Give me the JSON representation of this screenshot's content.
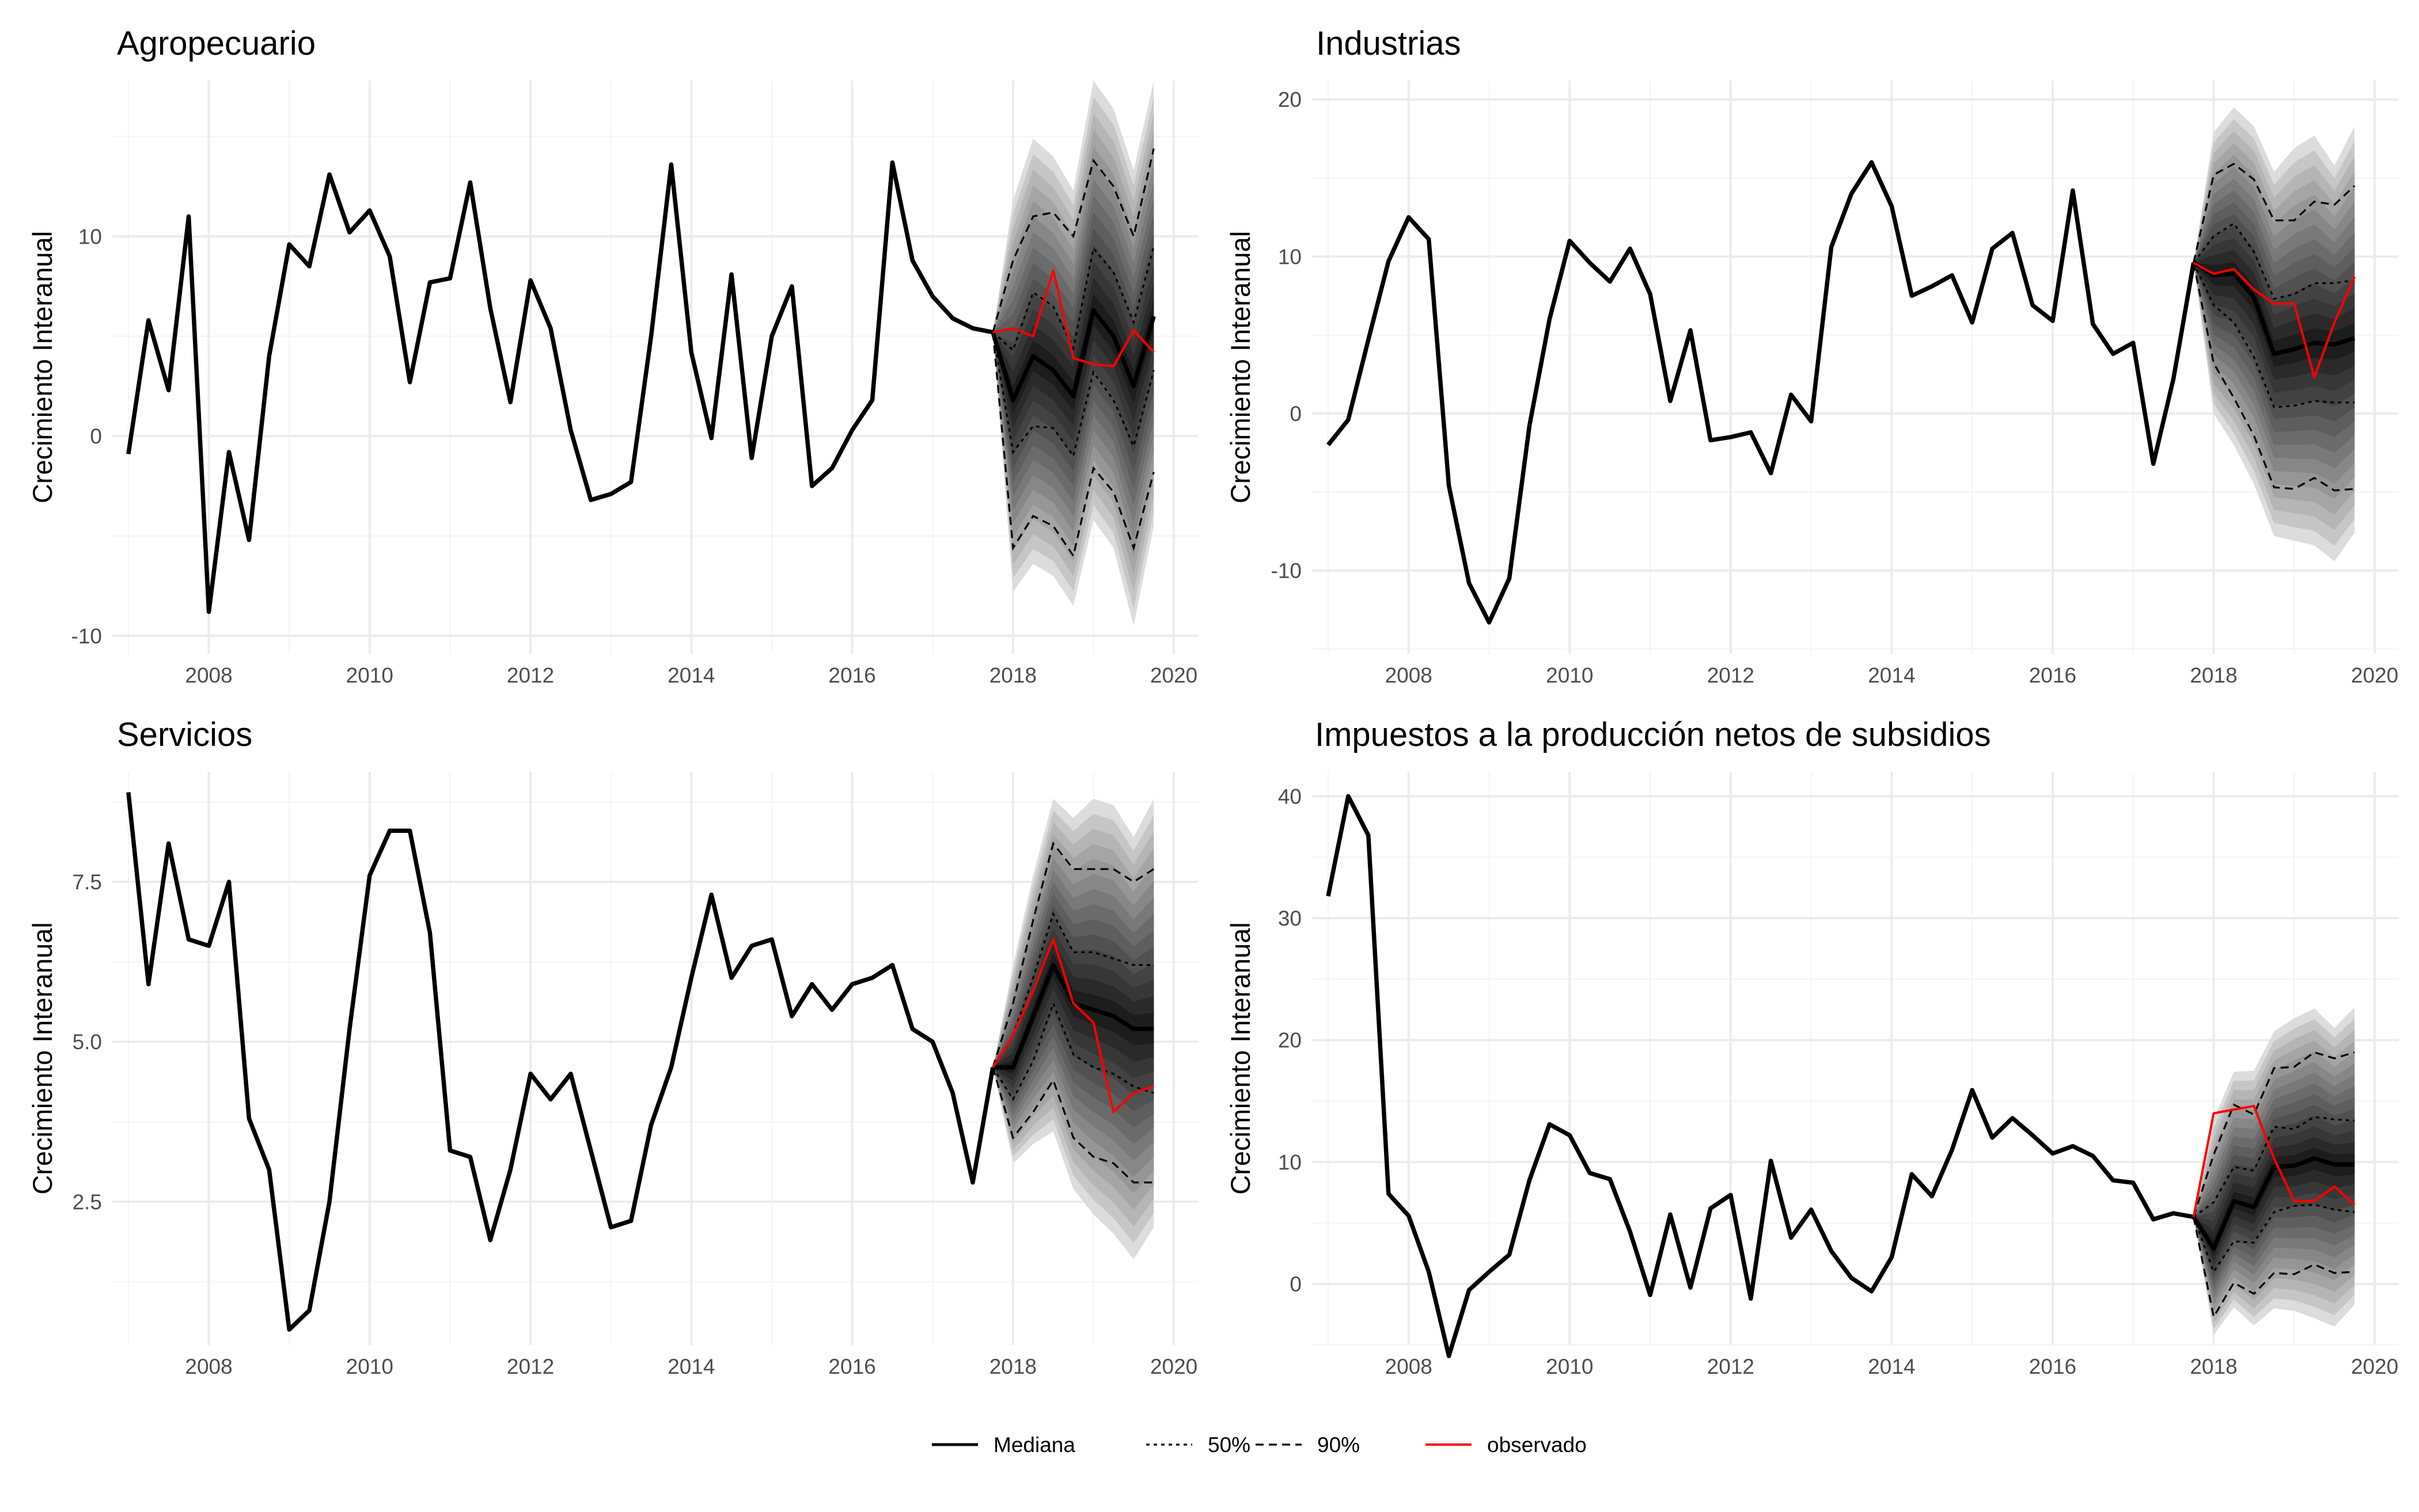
{
  "chart_data": [
    {
      "type": "line",
      "title": "Agropecuario",
      "xlabel": "",
      "ylabel": "Crecimiento Interanual",
      "xlim": [
        2006.8,
        2020.3
      ],
      "ylim": [
        -10.9,
        17.8
      ],
      "xticks": [
        2008,
        2010,
        2012,
        2014,
        2016,
        2018,
        2020
      ],
      "yticks": [
        -10,
        0,
        10
      ],
      "x_start": 2007.0,
      "x_step": 0.25,
      "history": [
        -0.9,
        5.8,
        2.3,
        11.0,
        -8.8,
        -0.8,
        -5.2,
        4.0,
        9.6,
        8.5,
        13.1,
        10.2,
        11.3,
        9.0,
        2.7,
        7.7,
        7.9,
        12.7,
        6.4,
        1.7,
        7.8,
        5.4,
        0.3,
        -3.2,
        -2.9,
        -2.3,
        5.0,
        13.6,
        4.2,
        -0.1,
        8.1,
        -1.1,
        5.0,
        7.5,
        -2.5,
        -1.6,
        0.3,
        1.8,
        13.7,
        8.8,
        7.0,
        5.9,
        5.4,
        5.2
      ],
      "fan_start": 2017.75,
      "median": [
        5.2,
        1.8,
        4.0,
        3.3,
        2.0,
        6.3,
        5.0,
        2.5,
        6.0
      ],
      "q25": [
        5.2,
        -0.8,
        0.5,
        0.4,
        -1.0,
        3.2,
        1.8,
        -0.5,
        3.3
      ],
      "q75": [
        5.2,
        4.3,
        7.2,
        6.5,
        4.4,
        9.4,
        8.2,
        5.7,
        9.5
      ],
      "q05": [
        5.2,
        -5.6,
        -4.0,
        -4.5,
        -6.0,
        -1.6,
        -2.8,
        -5.6,
        -1.8
      ],
      "q95": [
        5.2,
        8.8,
        11.0,
        11.2,
        10.0,
        13.8,
        12.5,
        10.0,
        14.4
      ],
      "outer_low": [
        5.2,
        -7.8,
        -6.4,
        -7.0,
        -8.5,
        -4.2,
        -5.6,
        -9.5,
        -4.5
      ],
      "outer_high": [
        5.2,
        11.8,
        14.9,
        14.0,
        12.3,
        17.8,
        16.4,
        13.3,
        17.8
      ],
      "observed_start": 2017.75,
      "observed": [
        5.2,
        5.4,
        5.0,
        8.3,
        3.9,
        3.6,
        3.5,
        5.3,
        4.2
      ]
    },
    {
      "type": "line",
      "title": "Industrias",
      "xlabel": "",
      "ylabel": "Crecimiento Interanual",
      "xlim": [
        2006.8,
        2020.3
      ],
      "ylim": [
        -15.3,
        21.2
      ],
      "xticks": [
        2008,
        2010,
        2012,
        2014,
        2016,
        2018,
        2020
      ],
      "yticks": [
        -10,
        0,
        10,
        20
      ],
      "x_start": 2007.0,
      "x_step": 0.25,
      "history": [
        -2.0,
        -0.4,
        4.7,
        9.7,
        12.5,
        11.1,
        -4.6,
        -10.8,
        -13.3,
        -10.5,
        -0.8,
        6.0,
        11.0,
        9.6,
        8.4,
        10.5,
        7.6,
        0.8,
        5.3,
        -1.7,
        -1.5,
        -1.2,
        -3.8,
        1.2,
        -0.5,
        10.6,
        14.0,
        16.0,
        13.2,
        7.5,
        8.1,
        8.8,
        5.8,
        10.5,
        11.5,
        6.9,
        5.9,
        14.2,
        5.7,
        3.8,
        4.5,
        -3.2,
        2.2,
        9.6
      ],
      "fan_start": 2017.75,
      "median": [
        9.6,
        8.8,
        8.9,
        7.4,
        3.8,
        4.1,
        4.5,
        4.4,
        4.8
      ],
      "q25": [
        9.6,
        6.9,
        5.8,
        3.6,
        0.4,
        0.5,
        0.8,
        0.7,
        0.7
      ],
      "q75": [
        9.6,
        11.3,
        12.1,
        10.3,
        7.3,
        7.6,
        8.3,
        8.3,
        8.5
      ],
      "q05": [
        9.6,
        3.2,
        1.0,
        -1.4,
        -4.7,
        -4.8,
        -4.1,
        -4.9,
        -4.8
      ],
      "q95": [
        9.6,
        15.2,
        15.9,
        14.9,
        12.3,
        12.3,
        13.5,
        13.3,
        14.5
      ],
      "outer_low": [
        9.6,
        0.0,
        -2.0,
        -4.5,
        -7.8,
        -8.1,
        -8.4,
        -9.4,
        -7.6
      ],
      "outer_high": [
        9.6,
        17.9,
        19.5,
        18.3,
        15.4,
        16.9,
        17.7,
        15.8,
        18.3
      ],
      "observed_start": 2017.75,
      "observed": [
        9.6,
        8.9,
        9.2,
        7.9,
        7.0,
        7.0,
        2.3,
        5.8,
        8.7
      ]
    },
    {
      "type": "line",
      "title": "Servicios",
      "xlabel": "",
      "ylabel": "Crecimiento Interanual",
      "xlim": [
        2006.8,
        2020.3
      ],
      "ylim": [
        0.26,
        9.22
      ],
      "xticks": [
        2008,
        2010,
        2012,
        2014,
        2016,
        2018,
        2020
      ],
      "yticks": [
        2.5,
        5.0,
        7.5
      ],
      "ytick_labels": [
        "2.5",
        "5.0",
        "7.5"
      ],
      "x_start": 2007.0,
      "x_step": 0.25,
      "history": [
        8.9,
        5.9,
        8.1,
        6.6,
        6.5,
        7.5,
        3.8,
        3.0,
        0.5,
        0.8,
        2.5,
        5.2,
        7.6,
        8.3,
        8.3,
        6.7,
        3.3,
        3.2,
        1.9,
        3.0,
        4.5,
        4.1,
        4.5,
        3.3,
        2.1,
        2.2,
        3.7,
        4.6,
        6.0,
        7.3,
        6.0,
        6.5,
        6.6,
        5.4,
        5.9,
        5.5,
        5.9,
        6.0,
        6.2,
        5.2,
        5.0,
        4.2,
        2.8,
        4.6
      ],
      "fan_start": 2017.75,
      "median": [
        4.6,
        4.6,
        5.4,
        6.2,
        5.6,
        5.5,
        5.4,
        5.2,
        5.2
      ],
      "q25": [
        4.6,
        4.1,
        4.7,
        5.6,
        4.8,
        4.6,
        4.5,
        4.3,
        4.2
      ],
      "q75": [
        4.6,
        5.1,
        6.0,
        7.0,
        6.4,
        6.4,
        6.3,
        6.2,
        6.2
      ],
      "q05": [
        4.6,
        3.5,
        3.9,
        4.4,
        3.5,
        3.2,
        3.1,
        2.8,
        2.8
      ],
      "q95": [
        4.6,
        5.6,
        6.9,
        8.1,
        7.7,
        7.7,
        7.7,
        7.5,
        7.7
      ],
      "outer_low": [
        4.6,
        3.1,
        3.4,
        3.6,
        2.7,
        2.3,
        2.0,
        1.6,
        2.1
      ],
      "outer_high": [
        4.6,
        6.2,
        7.6,
        8.8,
        8.5,
        8.8,
        8.7,
        8.2,
        8.8
      ],
      "observed_start": 2017.75,
      "observed": [
        4.6,
        5.1,
        5.8,
        6.6,
        5.6,
        5.3,
        3.9,
        4.2,
        4.3
      ]
    },
    {
      "type": "line",
      "title": "Impuestos a la producción netos de subsidios",
      "xlabel": "",
      "ylabel": "Crecimiento Interanual",
      "xlim": [
        2006.8,
        2020.3
      ],
      "ylim": [
        -5.0,
        42.0
      ],
      "xticks": [
        2008,
        2010,
        2012,
        2014,
        2016,
        2018,
        2020
      ],
      "yticks": [
        0,
        10,
        20,
        30,
        40
      ],
      "x_start": 2007.0,
      "x_step": 0.25,
      "history": [
        31.8,
        40.0,
        36.8,
        7.4,
        5.6,
        1.0,
        -5.9,
        -0.5,
        1.0,
        2.4,
        8.5,
        13.1,
        12.2,
        9.1,
        8.6,
        4.3,
        -0.9,
        5.7,
        -0.3,
        6.2,
        7.3,
        -1.2,
        10.1,
        3.8,
        6.1,
        2.7,
        0.5,
        -0.6,
        2.2,
        9.0,
        7.2,
        11.0,
        15.9,
        12.0,
        13.6,
        12.2,
        10.7,
        11.3,
        10.5,
        8.5,
        8.3,
        5.3,
        5.8,
        5.5
      ],
      "fan_start": 2017.75,
      "median": [
        5.5,
        2.9,
        6.8,
        6.3,
        9.6,
        9.7,
        10.3,
        9.8,
        9.8
      ],
      "q25": [
        5.5,
        1.0,
        3.5,
        3.4,
        5.9,
        6.4,
        6.5,
        6.1,
        5.9
      ],
      "q75": [
        5.5,
        6.7,
        9.6,
        9.3,
        12.9,
        12.7,
        13.7,
        13.5,
        13.4
      ],
      "q05": [
        5.5,
        -2.7,
        0.1,
        -0.8,
        0.9,
        0.8,
        1.6,
        0.9,
        1.0
      ],
      "q95": [
        5.5,
        10.6,
        14.7,
        13.9,
        17.7,
        17.8,
        19.0,
        18.5,
        19.0
      ],
      "outer_low": [
        5.5,
        -4.2,
        -1.9,
        -3.4,
        -2.0,
        -2.2,
        -2.8,
        -3.5,
        -1.7
      ],
      "outer_high": [
        5.5,
        13.5,
        17.4,
        17.5,
        20.7,
        21.8,
        22.6,
        21.0,
        22.7
      ],
      "observed_start": 2017.75,
      "observed": [
        5.5,
        14.0,
        14.3,
        14.6,
        10.3,
        6.8,
        6.8,
        8.0,
        6.5
      ]
    }
  ],
  "legend": {
    "items": [
      {
        "label": "Mediana",
        "style": "solid",
        "color": "#000000"
      },
      {
        "label": "50%",
        "style": "dotted",
        "color": "#000000"
      },
      {
        "label": "90%",
        "style": "dashed",
        "color": "#000000"
      },
      {
        "label": "observado",
        "style": "solid",
        "color": "#ff0000"
      }
    ]
  },
  "colors": {
    "median": "#000000",
    "observed": "#ff0000",
    "fan_dark": "#111111",
    "fan_light": "#dcdcdc",
    "grid_major": "#ebebeb",
    "grid_minor": "#f5f5f5",
    "tick_text": "#4d4d4d"
  }
}
